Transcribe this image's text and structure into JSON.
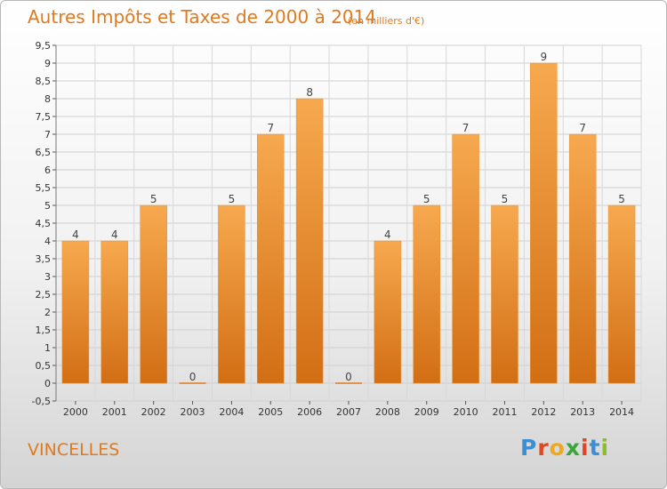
{
  "header": {
    "title": "Autres Impôts et Taxes de 2000 à 2014",
    "subtitle": "(en milliers d'€)"
  },
  "commune": "VINCELLES",
  "logo": {
    "text": "Proxiti",
    "letter_colors": [
      "#3a8fd6",
      "#e2461f",
      "#f2a81d",
      "#3aa53a",
      "#e2461f",
      "#3a8fd6",
      "#8bbf2a"
    ]
  },
  "colors": {
    "bar_top": "#f7a94f",
    "bar_bottom": "#d26e14",
    "accent": "#e07a1e"
  },
  "chart_data": {
    "type": "bar",
    "title": "Autres Impôts et Taxes de 2000 à 2014",
    "categories": [
      "2000",
      "2001",
      "2002",
      "2003",
      "2004",
      "2005",
      "2006",
      "2007",
      "2008",
      "2009",
      "2010",
      "2011",
      "2012",
      "2013",
      "2014"
    ],
    "values": [
      4,
      4,
      5,
      0,
      5,
      7,
      8,
      0,
      4,
      5,
      7,
      5,
      9,
      7,
      5
    ],
    "data_labels": [
      "4",
      "4",
      "5",
      "0",
      "5",
      "7",
      "8",
      "0",
      "4",
      "5",
      "7",
      "5",
      "9",
      "7",
      "5"
    ],
    "ylim": [
      -0.5,
      9.5
    ],
    "yticks": [
      -0.5,
      0,
      0.5,
      1,
      1.5,
      2,
      2.5,
      3,
      3.5,
      4,
      4.5,
      5,
      5.5,
      6,
      6.5,
      7,
      7.5,
      8,
      8.5,
      9,
      9.5
    ],
    "ytick_labels": [
      "-0,5",
      "0",
      "0,5",
      "1",
      "1,5",
      "2",
      "2,5",
      "3",
      "3,5",
      "4",
      "4,5",
      "5",
      "5,5",
      "6",
      "6,5",
      "7",
      "7,5",
      "8",
      "8,5",
      "9",
      "9,5"
    ],
    "grid": true
  }
}
